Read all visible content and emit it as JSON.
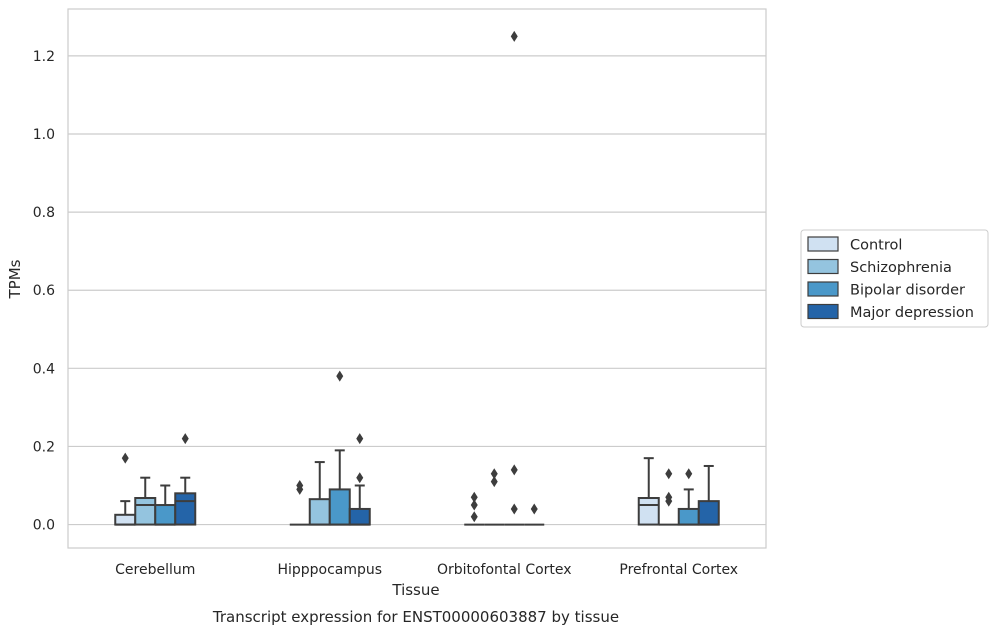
{
  "chart_data": {
    "type": "box",
    "xlabel": "Tissue",
    "ylabel": "TPMs",
    "caption": "Transcript expression for ENST00000603887 by tissue",
    "ylim": [
      -0.06,
      1.32
    ],
    "yticks": [
      "0.0",
      "0.2",
      "0.4",
      "0.6",
      "0.8",
      "1.0",
      "1.2"
    ],
    "categories": [
      "Cerebellum",
      "Hipppocampus",
      "Orbitofontal Cortex",
      "Prefrontal Cortex"
    ],
    "grid": "horizontal",
    "legend_position": "right",
    "series": [
      {
        "name": "Control",
        "color": "#d0e1f2",
        "boxes": [
          {
            "whislo": 0.0,
            "q1": 0.0,
            "med": 0.0,
            "q3": 0.025,
            "whishi": 0.06,
            "fliers": [
              0.17
            ]
          },
          {
            "whislo": 0.0,
            "q1": 0.0,
            "med": 0.0,
            "q3": 0.0,
            "whishi": 0.0,
            "fliers": [
              0.09,
              0.1
            ]
          },
          {
            "whislo": 0.0,
            "q1": 0.0,
            "med": 0.0,
            "q3": 0.0,
            "whishi": 0.0,
            "fliers": [
              0.02,
              0.05,
              0.07
            ]
          },
          {
            "whislo": 0.0,
            "q1": 0.0,
            "med": 0.05,
            "q3": 0.068,
            "whishi": 0.17,
            "fliers": []
          }
        ]
      },
      {
        "name": "Schizophrenia",
        "color": "#94c4df",
        "boxes": [
          {
            "whislo": 0.0,
            "q1": 0.0,
            "med": 0.05,
            "q3": 0.068,
            "whishi": 0.12,
            "fliers": []
          },
          {
            "whislo": 0.0,
            "q1": 0.0,
            "med": 0.0,
            "q3": 0.065,
            "whishi": 0.16,
            "fliers": []
          },
          {
            "whislo": 0.0,
            "q1": 0.0,
            "med": 0.0,
            "q3": 0.0,
            "whishi": 0.0,
            "fliers": [
              0.11,
              0.13
            ]
          },
          {
            "whislo": 0.0,
            "q1": 0.0,
            "med": 0.0,
            "q3": 0.0,
            "whishi": 0.0,
            "fliers": [
              0.06,
              0.07,
              0.13
            ]
          }
        ]
      },
      {
        "name": "Bipolar disorder",
        "color": "#4a98c9",
        "boxes": [
          {
            "whislo": 0.0,
            "q1": 0.0,
            "med": 0.0,
            "q3": 0.05,
            "whishi": 0.1,
            "fliers": []
          },
          {
            "whislo": 0.0,
            "q1": 0.0,
            "med": 0.0,
            "q3": 0.09,
            "whishi": 0.19,
            "fliers": [
              0.38
            ]
          },
          {
            "whislo": 0.0,
            "q1": 0.0,
            "med": 0.0,
            "q3": 0.0,
            "whishi": 0.0,
            "fliers": [
              0.04,
              0.14,
              1.25
            ]
          },
          {
            "whislo": 0.0,
            "q1": 0.0,
            "med": 0.0,
            "q3": 0.04,
            "whishi": 0.09,
            "fliers": [
              0.13
            ]
          }
        ]
      },
      {
        "name": "Major depression",
        "color": "#2464a8",
        "boxes": [
          {
            "whislo": 0.0,
            "q1": 0.0,
            "med": 0.06,
            "q3": 0.08,
            "whishi": 0.12,
            "fliers": [
              0.22
            ]
          },
          {
            "whislo": 0.0,
            "q1": 0.0,
            "med": 0.0,
            "q3": 0.04,
            "whishi": 0.1,
            "fliers": [
              0.12,
              0.22
            ]
          },
          {
            "whislo": 0.0,
            "q1": 0.0,
            "med": 0.0,
            "q3": 0.0,
            "whishi": 0.0,
            "fliers": [
              0.04
            ]
          },
          {
            "whislo": 0.0,
            "q1": 0.0,
            "med": 0.0,
            "q3": 0.06,
            "whishi": 0.15,
            "fliers": []
          }
        ]
      }
    ]
  }
}
